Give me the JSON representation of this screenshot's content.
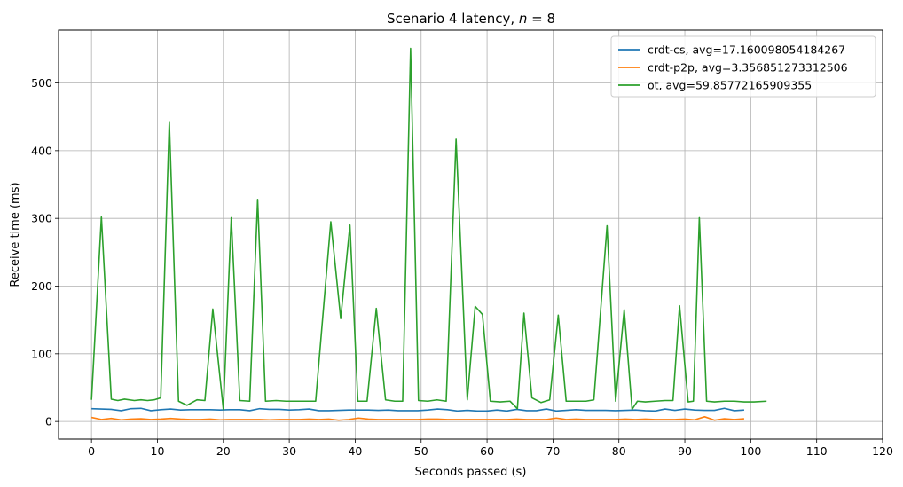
{
  "chart_data": {
    "type": "line",
    "title": "Scenario 4 latency, ",
    "title_var": "n",
    "title_suffix": " = 8",
    "xlabel": "Seconds passed (s)",
    "ylabel": "Receive time (ms)",
    "xlim": [
      -5,
      120
    ],
    "ylim": [
      -26,
      578
    ],
    "xticks": [
      0,
      10,
      20,
      30,
      40,
      50,
      60,
      70,
      80,
      90,
      100,
      110,
      120
    ],
    "yticks": [
      0,
      100,
      200,
      300,
      400,
      500
    ],
    "grid": true,
    "legend_position": "top-right",
    "series": [
      {
        "name": "crdt-cs, avg=17.160098054184267",
        "color": "#1f77b4",
        "x": [
          0,
          1.5,
          3,
          4.5,
          6,
          7.5,
          9,
          10.5,
          12,
          13.5,
          15,
          16.5,
          18,
          19.5,
          21,
          22.5,
          24,
          25.5,
          27,
          28.5,
          30,
          31.5,
          33,
          34.5,
          36,
          37.5,
          39,
          40.5,
          42,
          43.5,
          45,
          46.5,
          48,
          49.5,
          51,
          52.5,
          54,
          55.5,
          57,
          58.5,
          60,
          61.5,
          63,
          64.5,
          66,
          67.5,
          69,
          70.5,
          72,
          73.5,
          75,
          76.5,
          78,
          79.5,
          81,
          82.5,
          84,
          85.5,
          87,
          88.5,
          90,
          91.5,
          93,
          94.5,
          96,
          97.5,
          99
        ],
        "values": [
          19,
          18.5,
          18,
          16,
          19,
          19.5,
          16,
          17.5,
          18.5,
          17,
          17.5,
          17.5,
          17.5,
          17,
          17.5,
          17.5,
          16,
          19,
          18,
          18,
          17,
          17.5,
          18.5,
          16,
          16,
          16.5,
          17,
          17,
          17,
          16.5,
          17,
          16,
          16,
          16,
          17,
          18.5,
          17.5,
          15.5,
          16.5,
          15.5,
          15.5,
          17,
          15.5,
          18,
          16,
          16,
          18.5,
          15.5,
          16.5,
          17.5,
          16.5,
          16.5,
          16.5,
          16,
          16.5,
          17,
          16,
          15.5,
          18.5,
          16.5,
          18.5,
          17,
          16.5,
          16.5,
          19.5,
          16,
          17
        ]
      },
      {
        "name": "crdt-p2p, avg=3.356851273312506",
        "color": "#ff7f0e",
        "x": [
          0,
          1.5,
          3,
          4.5,
          6,
          7.5,
          9,
          10.5,
          12,
          13.5,
          15,
          16.5,
          18,
          19.5,
          21,
          22.5,
          24,
          25.5,
          27,
          28.5,
          30,
          31.5,
          33,
          34.5,
          36,
          37.5,
          39,
          40.5,
          42,
          43.5,
          45,
          46.5,
          48,
          49.5,
          51,
          52.5,
          54,
          55.5,
          57,
          58.5,
          60,
          61.5,
          63,
          64.5,
          66,
          67.5,
          69,
          70.5,
          72,
          73.5,
          75,
          76.5,
          78,
          79.5,
          81,
          82.5,
          84,
          85.5,
          87,
          88.5,
          90,
          91.5,
          93,
          94.5,
          96,
          97.5,
          99
        ],
        "values": [
          6,
          3,
          4.5,
          2.5,
          3.5,
          4,
          3,
          3.5,
          4.5,
          3.5,
          3,
          3,
          3.5,
          2.5,
          3,
          3,
          3,
          3,
          2.5,
          3,
          3,
          3,
          3.5,
          3,
          3.5,
          2,
          3,
          5,
          3.5,
          3,
          3,
          3,
          3,
          3,
          3.5,
          3.5,
          3,
          3,
          3,
          3,
          3,
          3,
          3,
          3.5,
          3,
          3,
          3,
          5,
          3,
          3.5,
          3,
          3,
          3,
          3,
          3.5,
          3,
          3.5,
          3,
          3,
          3,
          3.5,
          2.5,
          7,
          2,
          4,
          3,
          4
        ]
      },
      {
        "name": "ot, avg=59.85772165909355",
        "color": "#2ca02c",
        "x": [
          0,
          1.5,
          3,
          4,
          5,
          6.5,
          7.5,
          8.5,
          9.5,
          10.5,
          11.8,
          13.2,
          14.5,
          16,
          17.2,
          18.4,
          20,
          21.2,
          22.5,
          24,
          25.2,
          26.4,
          28,
          29.5,
          31,
          32.5,
          34,
          36.3,
          37.8,
          39.2,
          40.4,
          41.8,
          43.2,
          44.6,
          46,
          47.2,
          48.4,
          49.6,
          51,
          52.4,
          53.8,
          55.3,
          57,
          58.2,
          59.3,
          60.5,
          62,
          63.5,
          64.6,
          65.6,
          66.8,
          68.2,
          69.5,
          70.8,
          72,
          73.5,
          75,
          76.2,
          78.2,
          79.5,
          80.8,
          82,
          82.8,
          84,
          85.5,
          87,
          88.2,
          89.2,
          90.5,
          91.3,
          92.2,
          93.3,
          94.5,
          96,
          97.5,
          99,
          100.5,
          102.4
        ],
        "values": [
          32,
          302,
          33,
          31,
          33,
          31,
          32,
          31,
          32,
          35,
          443,
          30,
          24,
          32,
          31,
          166,
          18,
          301,
          31,
          30,
          328,
          30,
          31,
          30,
          30,
          30,
          30,
          295,
          152,
          290,
          30,
          30,
          167,
          32,
          30,
          30,
          551,
          31,
          30,
          32,
          30,
          417,
          32,
          170,
          158,
          30,
          29,
          30,
          19,
          160,
          35,
          28,
          32,
          157,
          30,
          30,
          30,
          32,
          289,
          30,
          165,
          18,
          30,
          29,
          30,
          31,
          31,
          171,
          29,
          30,
          301,
          30,
          29,
          30,
          30,
          29,
          29,
          30
        ]
      }
    ]
  }
}
